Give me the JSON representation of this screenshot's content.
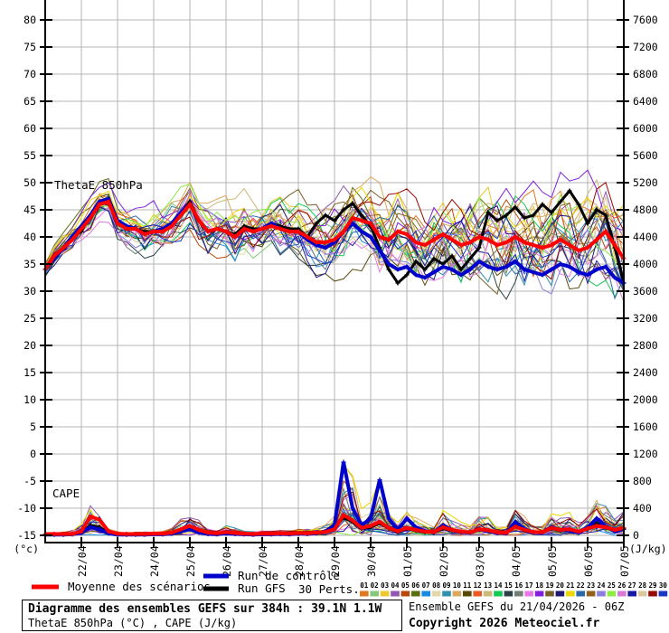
{
  "chart": {
    "thetae_label": "ThetaE 850hPa",
    "cape_label": "CAPE",
    "left_unit": "(°c)",
    "right_unit": "(J/kg)"
  },
  "legend": {
    "mean_label": "Moyenne des scénarios",
    "control_label": "Run de contrôle",
    "gfs_label": "Run GFS",
    "perts_label": "30 Perts.",
    "mean_color": "#ff0000",
    "control_color": "#0000cc",
    "gfs_color": "#000000"
  },
  "footer": {
    "title": "Diagramme des ensembles GEFS sur 384h : 39.1N 1.1W",
    "subtitle": "ThetaE 850hPa (°C) , CAPE (J/kg)",
    "run_info": "Ensemble GEFS du 21/04/2026 - 06Z",
    "copyright": "Copyright 2026 Meteociel.fr"
  },
  "chart_data": {
    "type": "line",
    "title": "Diagramme des ensembles GEFS sur 384h : 39.1N 1.1W",
    "x_description": "6-hourly steps, 65 points, from 21/04 06Z to 07/05 06Z (384h)",
    "x_tick_labels": [
      "22/04",
      "23/04",
      "24/04",
      "25/04",
      "26/04",
      "27/04",
      "28/04",
      "29/04",
      "30/04",
      "01/05",
      "02/05",
      "03/05",
      "04/05",
      "05/05",
      "06/05",
      "07/05"
    ],
    "left_axis": {
      "label": "(°c)",
      "min": -15,
      "max": 80,
      "step": 5,
      "grid": true
    },
    "right_axis": {
      "label": "(J/kg)",
      "min": 0,
      "max": 7600,
      "step": 400
    },
    "grid_color": "#b4b4b4",
    "series": [
      {
        "name": "Moyenne des scénarios",
        "color": "#ff0000",
        "width": 4,
        "thetae": [
          34,
          36.5,
          38,
          39.5,
          41.5,
          43.5,
          46,
          46.5,
          42.5,
          41.5,
          41.5,
          40.5,
          41,
          41,
          42,
          44,
          46,
          43,
          41,
          41.5,
          41,
          40,
          41.5,
          41,
          41.5,
          42,
          41.5,
          41,
          41,
          40,
          39,
          39,
          39.5,
          41,
          43.5,
          43,
          42.5,
          40,
          39.5,
          41,
          40.5,
          39,
          38.5,
          39.5,
          40.5,
          39.5,
          38.5,
          39,
          40,
          39.5,
          38.5,
          39,
          40,
          39,
          38.5,
          38,
          38.5,
          39.5,
          38.5,
          37.5,
          38,
          39.5,
          41,
          38.5,
          36
        ],
        "cape": [
          20,
          20,
          20,
          20,
          60,
          280,
          230,
          60,
          25,
          20,
          20,
          20,
          25,
          25,
          40,
          90,
          140,
          80,
          40,
          30,
          50,
          35,
          25,
          20,
          25,
          25,
          30,
          25,
          35,
          30,
          40,
          50,
          90,
          300,
          220,
          110,
          140,
          200,
          110,
          60,
          110,
          80,
          55,
          50,
          120,
          80,
          55,
          45,
          90,
          75,
          45,
          40,
          130,
          80,
          50,
          45,
          110,
          80,
          90,
          55,
          100,
          140,
          120,
          80,
          110
        ]
      },
      {
        "name": "Run de contrôle",
        "color": "#0000cc",
        "width": 4,
        "thetae": [
          34,
          36,
          38,
          40,
          42,
          44,
          46.5,
          47,
          43,
          42,
          41.5,
          40.5,
          41,
          41.5,
          42.5,
          44.5,
          46,
          43,
          41,
          41.5,
          41,
          40,
          41.5,
          41,
          41.5,
          42.5,
          41.5,
          41,
          41,
          39.5,
          38.5,
          38,
          39,
          41,
          42.5,
          41,
          40,
          37.5,
          35,
          34,
          34.5,
          33,
          32.5,
          33.5,
          34.5,
          34,
          33,
          34,
          35.5,
          34.5,
          34,
          34.5,
          35.5,
          34,
          33.5,
          33,
          34,
          35,
          34.5,
          33.5,
          33,
          34,
          34.5,
          32.5,
          31.5
        ],
        "cape": [
          10,
          10,
          10,
          15,
          40,
          120,
          90,
          30,
          10,
          10,
          10,
          10,
          15,
          15,
          25,
          60,
          90,
          40,
          20,
          15,
          30,
          20,
          15,
          10,
          15,
          15,
          20,
          15,
          25,
          20,
          30,
          60,
          150,
          1080,
          400,
          150,
          250,
          820,
          250,
          80,
          250,
          120,
          60,
          50,
          150,
          80,
          50,
          40,
          90,
          60,
          40,
          30,
          200,
          90,
          50,
          40,
          120,
          80,
          70,
          40,
          110,
          250,
          130,
          60,
          90
        ]
      },
      {
        "name": "Run GFS",
        "color": "#000000",
        "width": 3,
        "thetae": [
          34,
          36,
          38,
          40,
          41,
          44,
          46,
          47,
          43,
          42,
          41.5,
          41,
          41,
          41.5,
          42.5,
          44.5,
          46.5,
          43,
          41,
          41.5,
          41,
          40.5,
          42,
          41.5,
          41.5,
          42.5,
          42,
          41.5,
          41.5,
          40,
          42.5,
          44,
          43,
          45,
          46.2,
          44,
          42,
          38,
          34,
          31.5,
          33,
          35.5,
          34,
          36,
          35,
          36.5,
          34,
          36,
          38,
          44.5,
          43,
          44,
          45.5,
          43.5,
          44,
          46,
          44.5,
          46.5,
          48.5,
          46,
          42.5,
          45,
          44,
          38,
          31.5
        ],
        "cape": [
          15,
          15,
          15,
          20,
          50,
          150,
          120,
          40,
          15,
          15,
          15,
          15,
          20,
          20,
          30,
          70,
          100,
          50,
          25,
          20,
          40,
          25,
          20,
          15,
          20,
          20,
          25,
          20,
          30,
          25,
          35,
          60,
          110,
          260,
          200,
          100,
          120,
          180,
          100,
          50,
          100,
          70,
          45,
          40,
          100,
          70,
          45,
          40,
          80,
          65,
          40,
          35,
          160,
          70,
          45,
          40,
          100,
          70,
          80,
          50,
          90,
          180,
          110,
          70,
          95
        ]
      }
    ],
    "ensemble": {
      "count": 30,
      "labels": [
        "01",
        "02",
        "03",
        "04",
        "05",
        "06",
        "07",
        "08",
        "09",
        "10",
        "11",
        "12",
        "13",
        "14",
        "15",
        "16",
        "17",
        "18",
        "19",
        "20",
        "21",
        "22",
        "23",
        "24",
        "25",
        "26",
        "27",
        "28",
        "29",
        "30"
      ],
      "colors": [
        "#e07820",
        "#84c87c",
        "#ecc82c",
        "#9058b0",
        "#b84808",
        "#5c7010",
        "#188ae0",
        "#e0d8ac",
        "#3090b0",
        "#dca860",
        "#584808",
        "#ec5820",
        "#ccb878",
        "#14c854",
        "#2c4048",
        "#708078",
        "#e878e8",
        "#8020dc",
        "#786028",
        "#201870",
        "#ecd800",
        "#2868a8",
        "#90601c",
        "#8880dc",
        "#8cec44",
        "#d878d8",
        "#1818a0",
        "#dcc8a0",
        "#980800",
        "#1838c4"
      ],
      "thetae_spread": {
        "start": 1.5,
        "end": 9.5,
        "power": 0.85
      },
      "cape_envelope_max": [
        60,
        60,
        60,
        80,
        200,
        460,
        420,
        150,
        60,
        50,
        60,
        60,
        80,
        80,
        120,
        260,
        430,
        280,
        120,
        90,
        160,
        120,
        80,
        60,
        80,
        80,
        100,
        90,
        120,
        100,
        130,
        160,
        300,
        1100,
        900,
        400,
        500,
        850,
        400,
        200,
        420,
        300,
        200,
        180,
        460,
        300,
        200,
        160,
        350,
        280,
        160,
        140,
        520,
        300,
        180,
        160,
        420,
        300,
        350,
        200,
        380,
        550,
        480,
        300,
        450
      ]
    }
  }
}
